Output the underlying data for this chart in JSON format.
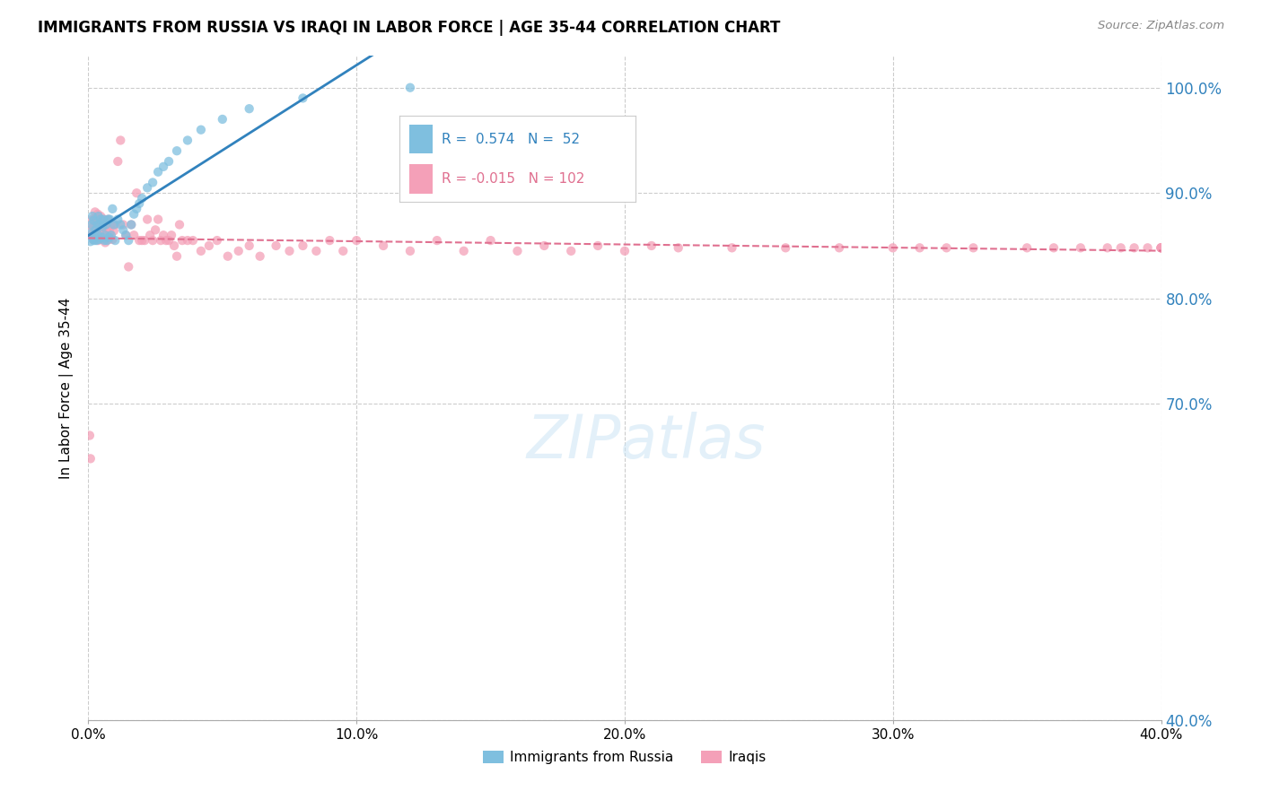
{
  "title": "IMMIGRANTS FROM RUSSIA VS IRAQI IN LABOR FORCE | AGE 35-44 CORRELATION CHART",
  "source": "Source: ZipAtlas.com",
  "ylabel": "In Labor Force | Age 35-44",
  "xlim": [
    0.0,
    0.4
  ],
  "ylim": [
    0.4,
    1.03
  ],
  "yticks": [
    0.4,
    0.7,
    0.8,
    0.9,
    1.0
  ],
  "ytick_labels": [
    "40.0%",
    "70.0%",
    "80.0%",
    "90.0%",
    "100.0%"
  ],
  "xticks": [
    0.0,
    0.1,
    0.2,
    0.3,
    0.4
  ],
  "xtick_labels": [
    "0.0%",
    "10.0%",
    "20.0%",
    "30.0%",
    "40.0%"
  ],
  "russia_R": 0.574,
  "russia_N": 52,
  "iraq_R": -0.015,
  "iraq_N": 102,
  "russia_color": "#7fbfdf",
  "iraq_color": "#f4a0b8",
  "russia_line_color": "#3182bd",
  "iraq_line_color": "#e07090",
  "legend_label_russia": "Immigrants from Russia",
  "legend_label_iraq": "Iraqis",
  "watermark": "ZIPatlas",
  "russia_x": [
    0.0008,
    0.001,
    0.0012,
    0.0015,
    0.0018,
    0.002,
    0.0022,
    0.0025,
    0.0027,
    0.003,
    0.0032,
    0.0035,
    0.0037,
    0.004,
    0.0043,
    0.0046,
    0.005,
    0.0053,
    0.0056,
    0.006,
    0.0063,
    0.0066,
    0.007,
    0.0074,
    0.0077,
    0.008,
    0.0085,
    0.009,
    0.0095,
    0.01,
    0.011,
    0.012,
    0.013,
    0.014,
    0.015,
    0.016,
    0.017,
    0.018,
    0.019,
    0.02,
    0.022,
    0.024,
    0.026,
    0.028,
    0.03,
    0.033,
    0.037,
    0.042,
    0.05,
    0.06,
    0.08,
    0.12
  ],
  "russia_y": [
    0.854,
    0.862,
    0.87,
    0.878,
    0.856,
    0.874,
    0.855,
    0.858,
    0.865,
    0.855,
    0.862,
    0.87,
    0.878,
    0.856,
    0.87,
    0.875,
    0.858,
    0.868,
    0.875,
    0.855,
    0.86,
    0.87,
    0.855,
    0.875,
    0.858,
    0.875,
    0.86,
    0.885,
    0.87,
    0.855,
    0.875,
    0.87,
    0.865,
    0.86,
    0.855,
    0.87,
    0.88,
    0.885,
    0.89,
    0.895,
    0.905,
    0.91,
    0.92,
    0.925,
    0.93,
    0.94,
    0.95,
    0.96,
    0.97,
    0.98,
    0.99,
    1.0
  ],
  "iraq_x": [
    0.0005,
    0.0008,
    0.001,
    0.0012,
    0.0015,
    0.0018,
    0.002,
    0.0022,
    0.0025,
    0.0027,
    0.003,
    0.0032,
    0.0035,
    0.0037,
    0.004,
    0.0043,
    0.0046,
    0.005,
    0.0053,
    0.0056,
    0.006,
    0.0063,
    0.0066,
    0.007,
    0.0074,
    0.0077,
    0.008,
    0.0085,
    0.009,
    0.0095,
    0.01,
    0.011,
    0.012,
    0.013,
    0.014,
    0.015,
    0.016,
    0.017,
    0.018,
    0.019,
    0.02,
    0.021,
    0.022,
    0.023,
    0.024,
    0.025,
    0.026,
    0.027,
    0.028,
    0.029,
    0.03,
    0.031,
    0.032,
    0.033,
    0.034,
    0.035,
    0.037,
    0.039,
    0.042,
    0.045,
    0.048,
    0.052,
    0.056,
    0.06,
    0.064,
    0.07,
    0.075,
    0.08,
    0.085,
    0.09,
    0.095,
    0.1,
    0.11,
    0.12,
    0.13,
    0.14,
    0.15,
    0.16,
    0.17,
    0.18,
    0.19,
    0.2,
    0.21,
    0.22,
    0.24,
    0.26,
    0.28,
    0.3,
    0.31,
    0.32,
    0.33,
    0.35,
    0.36,
    0.37,
    0.38,
    0.385,
    0.39,
    0.395,
    0.4,
    0.4,
    0.4,
    0.4
  ],
  "iraq_y": [
    0.67,
    0.648,
    0.86,
    0.868,
    0.875,
    0.856,
    0.868,
    0.875,
    0.882,
    0.86,
    0.868,
    0.875,
    0.88,
    0.855,
    0.862,
    0.87,
    0.878,
    0.856,
    0.862,
    0.868,
    0.875,
    0.853,
    0.86,
    0.867,
    0.875,
    0.856,
    0.863,
    0.87,
    0.856,
    0.864,
    0.87,
    0.93,
    0.95,
    0.87,
    0.86,
    0.83,
    0.87,
    0.86,
    0.9,
    0.855,
    0.855,
    0.855,
    0.875,
    0.86,
    0.855,
    0.865,
    0.875,
    0.855,
    0.86,
    0.855,
    0.855,
    0.86,
    0.85,
    0.84,
    0.87,
    0.855,
    0.855,
    0.855,
    0.845,
    0.85,
    0.855,
    0.84,
    0.845,
    0.85,
    0.84,
    0.85,
    0.845,
    0.85,
    0.845,
    0.855,
    0.845,
    0.855,
    0.85,
    0.845,
    0.855,
    0.845,
    0.855,
    0.845,
    0.85,
    0.845,
    0.85,
    0.845,
    0.85,
    0.848,
    0.848,
    0.848,
    0.848,
    0.848,
    0.848,
    0.848,
    0.848,
    0.848,
    0.848,
    0.848,
    0.848,
    0.848,
    0.848,
    0.848,
    0.848,
    0.848,
    0.848,
    0.848
  ]
}
